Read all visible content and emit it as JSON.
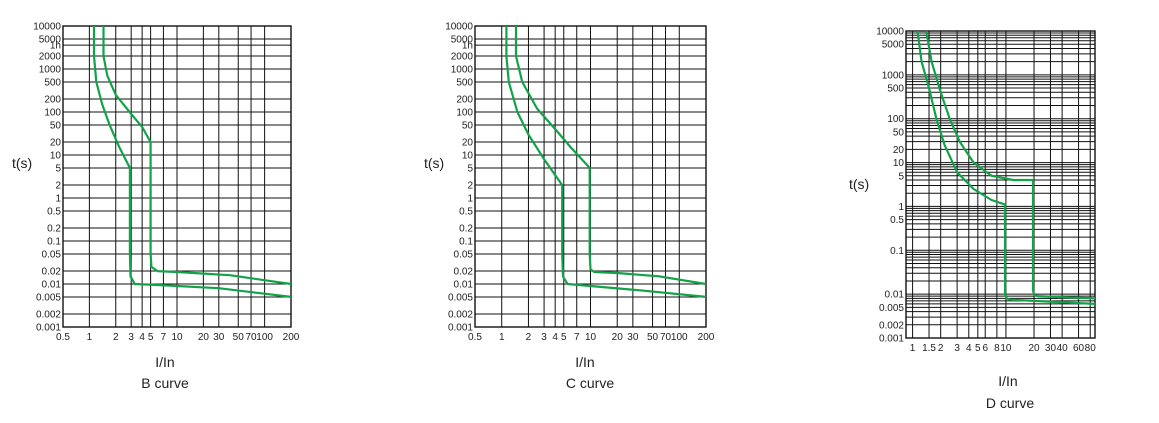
{
  "chart_data": [
    {
      "type": "line",
      "caption": "B curve",
      "xlabel": "I/In",
      "ylabel": "t(s)",
      "x_scale": "log",
      "y_scale": "log",
      "xlim": [
        0.5,
        200
      ],
      "ylim": [
        0.001,
        10000
      ],
      "grid": true,
      "x_ticks": [
        0.5,
        1,
        2,
        3,
        4,
        5,
        7,
        10,
        20,
        30,
        50,
        70,
        100,
        200
      ],
      "x_tick_labels": [
        "0.5",
        "1",
        "2",
        "3",
        "4",
        "5",
        "7",
        "10",
        "20",
        "30",
        "50",
        "70",
        "100",
        "200"
      ],
      "y_ticks": [
        10000,
        5000,
        3600,
        2000,
        1000,
        500,
        200,
        100,
        50,
        20,
        10,
        5,
        2,
        1,
        0.5,
        0.2,
        0.1,
        0.05,
        0.02,
        0.01,
        0.005,
        0.002,
        0.001
      ],
      "y_tick_labels": [
        "10000",
        "5000",
        "1h",
        "2000",
        "1000",
        "500",
        "200",
        "100",
        "50",
        "20",
        "10",
        "5",
        "2",
        "1",
        "0.5",
        "0.2",
        "0.1",
        "0.05",
        "0.02",
        "0.01",
        "0.005",
        "0.002",
        "0.001"
      ],
      "series": [
        {
          "x": [
            1.13,
            1.13,
            1.2,
            1.4,
            1.7,
            2.2,
            2.9,
            2.9,
            2.95,
            3.3,
            6,
            30,
            200
          ],
          "y": [
            10000,
            2000,
            500,
            150,
            50,
            15,
            5,
            0.05,
            0.015,
            0.01,
            0.0095,
            0.008,
            0.005
          ]
        },
        {
          "x": [
            1.45,
            1.45,
            1.6,
            2.0,
            3.0,
            4.0,
            5.0,
            5.0,
            5.1,
            6.0,
            10,
            40,
            200
          ],
          "y": [
            10000,
            2000,
            700,
            250,
            90,
            45,
            20,
            0.05,
            0.025,
            0.02,
            0.019,
            0.016,
            0.01
          ]
        }
      ]
    },
    {
      "type": "line",
      "caption": "C curve",
      "xlabel": "I/In",
      "ylabel": "t(s)",
      "x_scale": "log",
      "y_scale": "log",
      "xlim": [
        0.5,
        200
      ],
      "ylim": [
        0.001,
        10000
      ],
      "grid": true,
      "x_ticks": [
        0.5,
        1,
        2,
        3,
        4,
        5,
        7,
        10,
        20,
        30,
        50,
        70,
        100,
        200
      ],
      "x_tick_labels": [
        "0.5",
        "1",
        "2",
        "3",
        "4",
        "5",
        "7",
        "10",
        "20",
        "30",
        "50",
        "70",
        "100",
        "200"
      ],
      "y_ticks": [
        10000,
        5000,
        3600,
        2000,
        1000,
        500,
        200,
        100,
        50,
        20,
        10,
        5,
        2,
        1,
        0.5,
        0.2,
        0.1,
        0.05,
        0.02,
        0.01,
        0.005,
        0.002,
        0.001
      ],
      "y_tick_labels": [
        "10000",
        "5000",
        "1h",
        "2000",
        "1000",
        "500",
        "200",
        "100",
        "50",
        "20",
        "10",
        "5",
        "2",
        "1",
        "0.5",
        "0.2",
        "0.1",
        "0.05",
        "0.02",
        "0.01",
        "0.005",
        "0.002",
        "0.001"
      ],
      "series": [
        {
          "x": [
            1.13,
            1.13,
            1.2,
            1.5,
            2.0,
            3.0,
            4.8,
            4.8,
            4.9,
            5.5,
            10,
            40,
            200
          ],
          "y": [
            10000,
            2000,
            500,
            100,
            30,
            8,
            2,
            0.05,
            0.015,
            0.01,
            0.009,
            0.007,
            0.005
          ]
        },
        {
          "x": [
            1.45,
            1.45,
            1.7,
            2.5,
            4.0,
            6.0,
            9.8,
            9.8,
            10.0,
            11.0,
            20,
            60,
            200
          ],
          "y": [
            10000,
            2000,
            500,
            120,
            40,
            15,
            5,
            0.05,
            0.022,
            0.019,
            0.018,
            0.015,
            0.01
          ]
        }
      ]
    },
    {
      "type": "line",
      "caption": "D curve",
      "xlabel": "I/In",
      "ylabel": "t(s)",
      "x_scale": "log",
      "y_scale": "log",
      "xlim": [
        0.85,
        90
      ],
      "ylim": [
        0.001,
        10000
      ],
      "grid": true,
      "x_ticks": [
        1,
        1.5,
        2,
        3,
        4,
        5,
        6,
        8,
        10,
        20,
        30,
        40,
        60,
        80
      ],
      "x_tick_labels": [
        "1",
        "1.5",
        "2",
        "3",
        "4",
        "5",
        "6",
        "8",
        "10",
        "20",
        "30",
        "40",
        "60",
        "80"
      ],
      "y_ticks": [
        10000,
        5000,
        1000,
        500,
        100,
        50,
        20,
        10,
        5,
        1,
        0.5,
        0.1,
        0.01,
        0.005,
        0.002,
        0.001
      ],
      "y_tick_labels": [
        "10000",
        "5000",
        "1000",
        "500",
        "100",
        "50",
        "20",
        "10",
        "5",
        "1",
        "0.5",
        "0.1",
        "0.01",
        "0.005",
        "0.002",
        "0.001"
      ],
      "series": [
        {
          "x": [
            1.13,
            1.25,
            1.5,
            1.8,
            2.2,
            3.0,
            4.5,
            7.0,
            9.8,
            9.8,
            10.2,
            11,
            20,
            40,
            90
          ],
          "y": [
            10000,
            2000,
            500,
            100,
            25,
            6,
            2.5,
            1.4,
            1.1,
            0.01,
            0.008,
            0.0075,
            0.007,
            0.0065,
            0.006
          ]
        },
        {
          "x": [
            1.4,
            1.6,
            2.0,
            2.5,
            3.2,
            4.5,
            7.0,
            12,
            19.5,
            19.5,
            20.2,
            22,
            40,
            90
          ],
          "y": [
            10000,
            2000,
            400,
            100,
            30,
            10,
            5,
            4,
            4,
            0.012,
            0.0095,
            0.009,
            0.0085,
            0.008
          ]
        }
      ]
    }
  ]
}
